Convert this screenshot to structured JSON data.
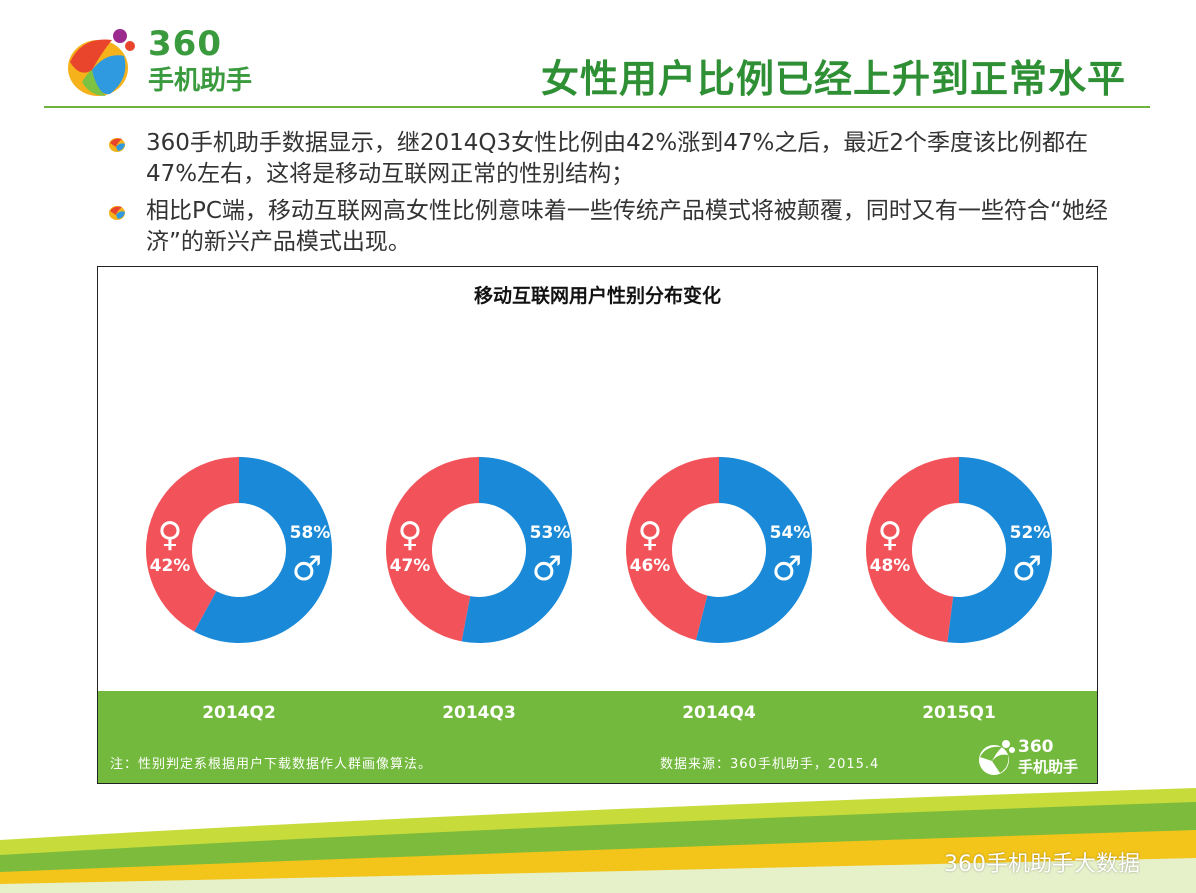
{
  "brand": {
    "logo_number": "360",
    "logo_name": "手机助手"
  },
  "page_title": "女性用户比例已经上升到正常水平",
  "bullets": [
    "360手机助手数据显示，继2014Q3女性比例由42%涨到47%之后，最近2个季度该比例都在47%左右，这将是移动互联网正常的性别结构；",
    "相比PC端，移动互联网高女性比例意味着一些传统产品模式将被颠覆，同时又有一些符合“她经济”的新兴产品模式出现。"
  ],
  "chart_data": {
    "type": "pie",
    "title": "移动互联网用户性别分布变化",
    "categories": [
      "2014Q2",
      "2014Q3",
      "2014Q4",
      "2015Q1"
    ],
    "series": [
      {
        "name": "♂",
        "color": "#1a8ad8",
        "values": [
          58,
          53,
          54,
          52
        ]
      },
      {
        "name": "♀",
        "color": "#f2535a",
        "values": [
          42,
          47,
          46,
          48
        ]
      }
    ],
    "value_labels": {
      "male": [
        "58%",
        "53%",
        "54%",
        "52%"
      ],
      "female": [
        "42%",
        "47%",
        "46%",
        "48%"
      ]
    },
    "male_symbol": "♂",
    "female_symbol": "♀"
  },
  "chart_note": "注：性别判定系根据用户下载数据作人群画像算法。",
  "chart_source": "数据来源：360手机助手，2015.4",
  "footer_text": "360手机助手大数据"
}
